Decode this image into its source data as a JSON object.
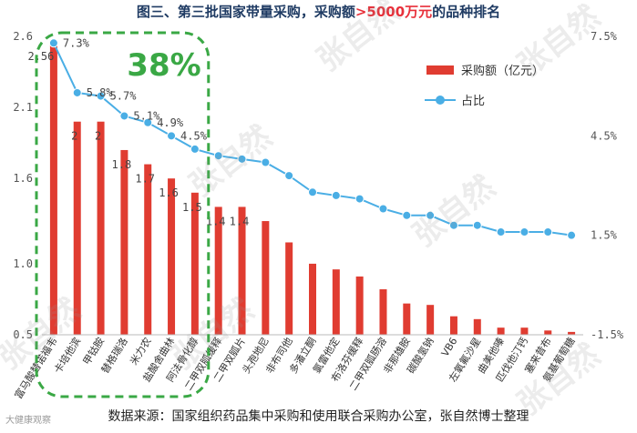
{
  "title": {
    "prefix": "图三、第三批国家带量采购，采购额",
    "highlight": ">5000万元",
    "suffix": "的品种排名"
  },
  "chart_data": {
    "type": "bar+line",
    "categories": [
      "富马酸替诺福韦",
      "卡培他滨",
      "甲钴胺",
      "替格瑞洛",
      "米力农",
      "盐酸舍曲林",
      "阿法骨化醇",
      "二甲双胍缓释",
      "二甲双胍片",
      "头孢地尼",
      "非布司他",
      "多潘立酮",
      "氯雷他定",
      "布洛芬缓释",
      "二甲双胍肠溶",
      "非那雄胺",
      "碳酸氢钠",
      "VB6",
      "左氧氟沙星",
      "曲美他嗪",
      "匹伐他汀钙",
      "塞来昔布",
      "氨基葡萄糖"
    ],
    "series": [
      {
        "name": "采购额（亿元）",
        "axis": "left",
        "color": "#e03c31",
        "values": [
          2.56,
          2.0,
          2.0,
          1.8,
          1.7,
          1.6,
          1.5,
          1.4,
          1.4,
          1.3,
          1.15,
          1.0,
          0.96,
          0.91,
          0.82,
          0.72,
          0.71,
          0.63,
          0.61,
          0.55,
          0.55,
          0.53,
          0.52
        ]
      },
      {
        "name": "占比",
        "axis": "right",
        "color": "#4aaee5",
        "values": [
          7.3,
          5.8,
          5.7,
          5.1,
          4.9,
          4.5,
          4.1,
          3.9,
          3.8,
          3.7,
          3.3,
          2.8,
          2.7,
          2.6,
          2.3,
          2.1,
          2.1,
          1.8,
          1.8,
          1.6,
          1.6,
          1.6,
          1.5
        ]
      }
    ],
    "bar_labels": [
      "2.56",
      "2",
      "2",
      "1.8",
      "1.7",
      "1.6",
      "1.5",
      "1.4",
      "1.4"
    ],
    "line_labels": [
      "7.3%",
      "5.8%",
      "5.7%",
      "5.1%",
      "4.9%",
      "4.5%"
    ],
    "y_left": {
      "min": 0.5,
      "max": 2.6,
      "ticks": [
        "0.5",
        "1.0",
        "1.6",
        "2.1",
        "2.6"
      ]
    },
    "y_right": {
      "min": -1.5,
      "max": 7.5,
      "ticks": [
        "-1.5%",
        "1.5%",
        "4.5%",
        "7.5%"
      ]
    },
    "legend": {
      "position": "top-right",
      "items": [
        "采购额（亿元）",
        "占比"
      ]
    },
    "annotation": {
      "text": "38%",
      "color": "#3aa845",
      "covers_first_n": 7
    }
  },
  "footer": "数据来源：国家组织药品集中采购和使用联合采购办公室，张自然博士整理",
  "logo_text": "大健康观察",
  "watermark": "张自然"
}
